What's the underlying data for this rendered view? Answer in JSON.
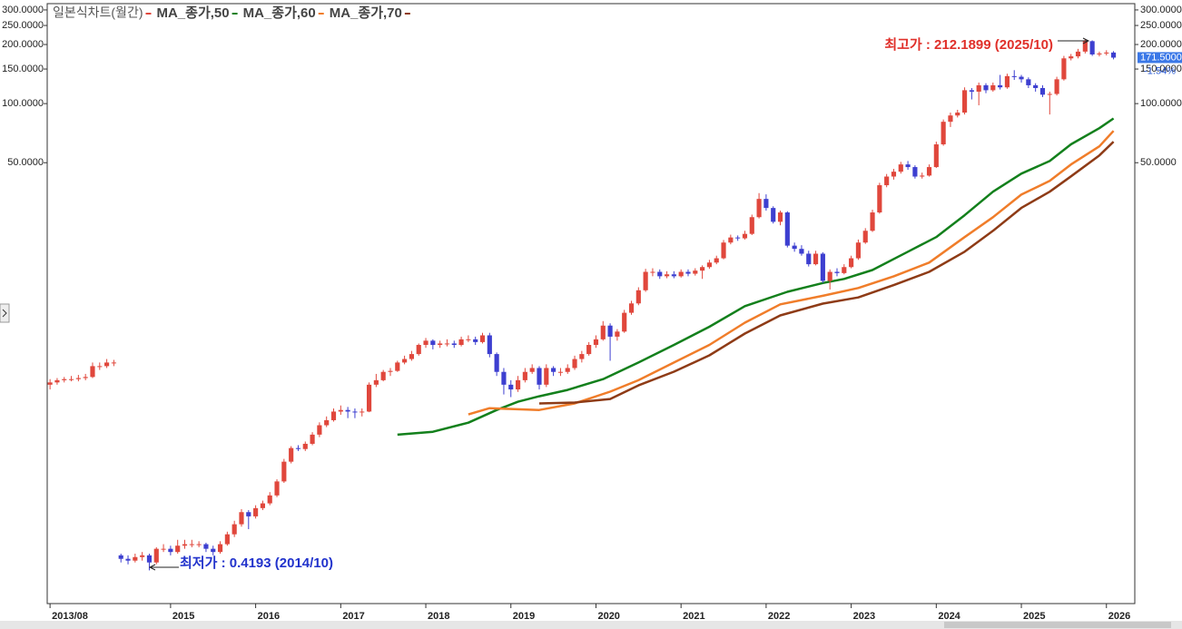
{
  "chart_data": {
    "type": "candlestick",
    "log_scale": true,
    "xlim": [
      -0.4,
      153
    ],
    "ylim": [
      0.284,
      323
    ],
    "xticks": [
      {
        "value": 0,
        "label": "2013/08"
      },
      {
        "value": 17,
        "label": "2015"
      },
      {
        "value": 29,
        "label": "2016"
      },
      {
        "value": 41,
        "label": "2017"
      },
      {
        "value": 53,
        "label": "2018"
      },
      {
        "value": 65,
        "label": "2019"
      },
      {
        "value": 77,
        "label": "2020"
      },
      {
        "value": 89,
        "label": "2021"
      },
      {
        "value": 101,
        "label": "2022"
      },
      {
        "value": 113,
        "label": "2023"
      },
      {
        "value": 125,
        "label": "2024"
      },
      {
        "value": 137,
        "label": "2025"
      },
      {
        "value": 149,
        "label": "2026"
      }
    ],
    "yticks": [
      {
        "value": 50,
        "label": "50.0000"
      },
      {
        "value": 100,
        "label": "100.0000"
      },
      {
        "value": 150,
        "label": "150.0000"
      },
      {
        "value": 200,
        "label": "200.0000"
      },
      {
        "value": 250,
        "label": "250.0000"
      },
      {
        "value": 300,
        "label": "300.0000"
      }
    ],
    "last_price": {
      "value": 171.5,
      "label": "171.5000"
    },
    "change_label": "-1.54%",
    "annotations": {
      "high": "최고가 : 212.1899 (2025/10)",
      "low": "최저가 : 0.4193 (2014/10)"
    },
    "series": [
      {
        "name": "일본식차트(월간)",
        "type": "candlestick",
        "up_color": "#e0473c",
        "down_color": "#3d3fd0",
        "open": [
          3.7,
          3.8,
          3.9,
          3.95,
          3.95,
          4.0,
          4.05,
          4.6,
          4.6,
          4.8,
          0.5,
          0.48,
          0.47,
          0.49,
          0.5,
          0.46,
          0.54,
          0.54,
          0.52,
          0.56,
          0.57,
          0.57,
          0.57,
          0.54,
          0.52,
          0.57,
          0.64,
          0.72,
          0.83,
          0.79,
          0.87,
          0.92,
          1.01,
          1.19,
          1.5,
          1.76,
          1.74,
          1.85,
          2.06,
          2.3,
          2.44,
          2.7,
          2.75,
          2.7,
          2.68,
          2.7,
          3.7,
          3.9,
          4.3,
          4.35,
          4.8,
          5.0,
          5.3,
          5.9,
          6.2,
          5.9,
          6.0,
          6.0,
          5.9,
          6.3,
          6.3,
          6.1,
          6.6,
          5.3,
          4.3,
          3.7,
          3.5,
          3.9,
          4.3,
          4.5,
          3.7,
          4.5,
          4.3,
          4.3,
          4.5,
          5.0,
          5.3,
          5.9,
          6.3,
          7.4,
          6.5,
          6.9,
          8.6,
          9.6,
          11.2,
          13.9,
          13.9,
          13.2,
          13.5,
          13.2,
          13.9,
          13.6,
          14.1,
          14.7,
          15.5,
          16.3,
          19.6,
          20.8,
          20.6,
          21.7,
          26.4,
          32.7,
          29.4,
          25.0,
          27.9,
          18.9,
          18.2,
          17.2,
          15.2,
          17.2,
          12.5,
          13.9,
          13.7,
          14.7,
          16.3,
          19.6,
          22.5,
          27.9,
          38.4,
          42.5,
          45,
          49,
          47.5,
          42.5,
          43,
          47.5,
          62,
          80.8,
          87,
          90,
          117,
          115,
          124,
          117,
          124,
          121,
          138,
          137,
          133,
          124,
          120,
          111,
          112,
          133,
          170,
          174,
          184,
          208,
          178,
          180,
          182
        ],
        "high": [
          3.95,
          4.0,
          4.05,
          4.1,
          4.15,
          4.2,
          4.8,
          4.8,
          5.0,
          4.95,
          0.51,
          0.5,
          0.51,
          0.52,
          0.51,
          0.55,
          0.57,
          0.56,
          0.6,
          0.6,
          0.6,
          0.59,
          0.58,
          0.56,
          0.59,
          0.66,
          0.75,
          0.86,
          0.85,
          0.9,
          0.95,
          1.05,
          1.22,
          1.55,
          1.8,
          1.82,
          1.9,
          2.12,
          2.38,
          2.55,
          2.8,
          2.9,
          2.85,
          2.8,
          2.8,
          3.8,
          4.2,
          4.4,
          4.5,
          4.9,
          5.2,
          5.5,
          6.0,
          6.4,
          6.3,
          6.2,
          6.3,
          6.2,
          6.5,
          6.6,
          6.5,
          6.8,
          6.8,
          5.4,
          4.5,
          3.9,
          4.1,
          4.5,
          4.7,
          4.6,
          4.7,
          4.6,
          4.5,
          4.7,
          5.2,
          5.5,
          6.1,
          6.6,
          7.8,
          7.6,
          7.1,
          8.9,
          9.9,
          11.6,
          14.4,
          14.5,
          14.3,
          14.0,
          14.0,
          14.3,
          14.3,
          14.5,
          15.0,
          16.0,
          16.8,
          20.2,
          21.5,
          21.3,
          22.5,
          27.2,
          35.0,
          34.5,
          30.0,
          28.5,
          28.3,
          19.6,
          19.0,
          17.8,
          17.8,
          17.5,
          14.3,
          14.5,
          15.2,
          16.8,
          20.3,
          23.2,
          28.8,
          39.5,
          43.8,
          46.5,
          50.5,
          51,
          48.5,
          44.5,
          49,
          64,
          83,
          90,
          93,
          121,
          120,
          128,
          127,
          128,
          140,
          142,
          148,
          140,
          136,
          127,
          124,
          115,
          137,
          175,
          179,
          190,
          212.1899,
          210,
          184,
          187,
          185
        ],
        "low": [
          3.5,
          3.7,
          3.8,
          3.85,
          3.85,
          3.9,
          4.0,
          4.4,
          4.5,
          4.6,
          0.46,
          0.45,
          0.46,
          0.47,
          0.4193,
          0.45,
          0.52,
          0.5,
          0.51,
          0.54,
          0.55,
          0.55,
          0.52,
          0.5,
          0.51,
          0.56,
          0.62,
          0.7,
          0.68,
          0.77,
          0.85,
          0.9,
          0.99,
          1.17,
          1.47,
          1.7,
          1.7,
          1.82,
          2.0,
          2.25,
          2.4,
          2.6,
          2.5,
          2.5,
          2.55,
          2.68,
          3.6,
          3.85,
          4.1,
          4.3,
          4.7,
          4.9,
          5.2,
          5.7,
          5.6,
          5.7,
          5.8,
          5.7,
          5.8,
          6.1,
          5.9,
          6.0,
          5.1,
          4.1,
          3.3,
          3.2,
          3.4,
          3.8,
          4.2,
          3.5,
          3.6,
          4.1,
          4.1,
          4.2,
          4.4,
          4.8,
          5.2,
          5.7,
          6.2,
          4.9,
          6.2,
          6.8,
          8.4,
          9.4,
          11.0,
          13.2,
          12.8,
          12.9,
          12.9,
          13.0,
          13.2,
          13.3,
          12.8,
          14.4,
          15.2,
          16.1,
          19.2,
          20.0,
          20.3,
          21.4,
          26.0,
          28.5,
          24.5,
          24.0,
          18.5,
          17.6,
          16.8,
          14.8,
          15.0,
          12.2,
          11.3,
          13.2,
          13.5,
          14.5,
          16.0,
          19.3,
          22.2,
          27.5,
          37.5,
          41.0,
          44,
          46,
          41.5,
          41.5,
          42.5,
          47,
          61,
          76,
          85,
          88,
          105,
          98,
          113,
          115,
          118,
          119,
          132,
          128,
          120,
          115,
          108,
          88,
          110,
          131,
          166,
          170,
          180,
          175,
          174,
          176,
          168
        ],
        "close": [
          3.8,
          3.9,
          3.95,
          3.95,
          4.0,
          4.05,
          4.6,
          4.6,
          4.8,
          4.8,
          0.48,
          0.47,
          0.49,
          0.5,
          0.46,
          0.54,
          0.54,
          0.52,
          0.56,
          0.57,
          0.57,
          0.57,
          0.54,
          0.52,
          0.57,
          0.64,
          0.72,
          0.83,
          0.79,
          0.87,
          0.92,
          1.01,
          1.19,
          1.5,
          1.76,
          1.74,
          1.85,
          2.06,
          2.3,
          2.44,
          2.7,
          2.75,
          2.7,
          2.68,
          2.7,
          3.7,
          3.9,
          4.3,
          4.35,
          4.8,
          5.0,
          5.3,
          5.9,
          6.2,
          5.9,
          6.0,
          6.0,
          5.9,
          6.3,
          6.3,
          6.1,
          6.6,
          5.3,
          4.3,
          3.7,
          3.5,
          3.9,
          4.3,
          4.5,
          3.7,
          4.5,
          4.3,
          4.3,
          4.5,
          5.0,
          5.3,
          5.9,
          6.3,
          7.4,
          6.5,
          6.9,
          8.6,
          9.6,
          11.2,
          13.9,
          13.9,
          13.2,
          13.5,
          13.2,
          13.9,
          13.6,
          14.1,
          14.7,
          15.5,
          16.3,
          19.6,
          20.8,
          20.6,
          21.7,
          26.4,
          32.7,
          29.4,
          25.0,
          27.9,
          18.9,
          18.2,
          17.2,
          15.2,
          17.2,
          12.5,
          13.9,
          13.7,
          14.7,
          16.3,
          19.6,
          22.5,
          27.9,
          38.4,
          42.5,
          45,
          49,
          47.5,
          42.5,
          43,
          47.5,
          62,
          80.8,
          87,
          90,
          117,
          115,
          124,
          117,
          124,
          121,
          138,
          137,
          133,
          124,
          120,
          111,
          112,
          133,
          170,
          174,
          184,
          208,
          178,
          180,
          182,
          171.5
        ]
      },
      {
        "name": "MA_종가,50",
        "type": "line",
        "color": "#13801c",
        "x": [
          49,
          54,
          59,
          63,
          66,
          69,
          73,
          78,
          83,
          88,
          93,
          98,
          104,
          109,
          112,
          116,
          121,
          125,
          129,
          133,
          137,
          141,
          144,
          148,
          150
        ],
        "values": [
          2.06,
          2.13,
          2.37,
          2.75,
          3.03,
          3.23,
          3.48,
          3.95,
          4.8,
          5.9,
          7.3,
          9.3,
          11.0,
          12.2,
          12.8,
          14.2,
          17.6,
          20.9,
          27.0,
          35.6,
          44,
          51,
          62,
          75,
          84
        ]
      },
      {
        "name": "MA_종가,60",
        "type": "line",
        "color": "#f07d2a",
        "x": [
          59,
          62,
          69,
          74,
          79,
          83,
          88,
          93,
          98,
          103,
          109,
          114,
          119,
          124,
          129,
          133,
          137,
          141,
          144,
          148,
          150
        ],
        "values": [
          2.61,
          2.81,
          2.75,
          2.97,
          3.41,
          3.9,
          4.8,
          5.9,
          7.66,
          9.5,
          10.5,
          11.5,
          13.2,
          15.5,
          20.9,
          26.4,
          34.4,
          40.4,
          49,
          60.6,
          72.6
        ]
      },
      {
        "name": "MA_종가,70",
        "type": "line",
        "color": "#8e3b16",
        "x": [
          69,
          74,
          79,
          83,
          88,
          93,
          98,
          103,
          109,
          114,
          119,
          124,
          129,
          133,
          137,
          141,
          144,
          148,
          150
        ],
        "values": [
          2.97,
          3.0,
          3.13,
          3.67,
          4.31,
          5.22,
          6.74,
          8.34,
          9.58,
          10.3,
          11.9,
          13.9,
          17.6,
          22.5,
          29.4,
          35.6,
          42.6,
          54.5,
          64
        ]
      }
    ]
  }
}
